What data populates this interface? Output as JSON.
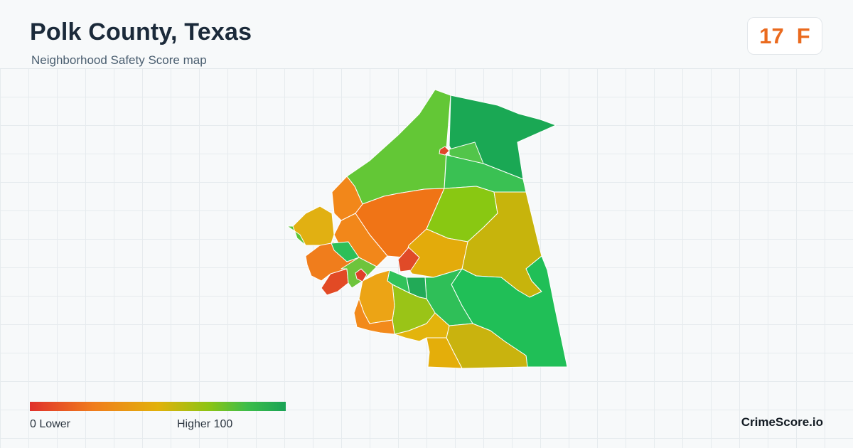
{
  "header": {
    "title": "Polk County, Texas",
    "subtitle": "Neighborhood Safety Score map"
  },
  "grade": {
    "score": "17",
    "letter": "F",
    "color": "#ea6a1e"
  },
  "map": {
    "stroke_color": "#ffffff",
    "regions": [
      {
        "name": "north-west-band",
        "color": "#63c736"
      },
      {
        "name": "north-east-tract",
        "color": "#1aa854"
      },
      {
        "name": "north-east-inner",
        "color": "#52c54a"
      },
      {
        "name": "east-green-strip",
        "color": "#3ac153"
      },
      {
        "name": "north-center",
        "color": "#f07416"
      },
      {
        "name": "center-lime",
        "color": "#89c812"
      },
      {
        "name": "east-olive",
        "color": "#c7b40c"
      },
      {
        "name": "center-amber",
        "color": "#e3ab0b"
      },
      {
        "name": "west-orange",
        "color": "#f2871a"
      },
      {
        "name": "west-orange-north",
        "color": "#f2871a"
      },
      {
        "name": "south-east-green",
        "color": "#20bf57"
      },
      {
        "name": "south-center-green",
        "color": "#2fbf58"
      },
      {
        "name": "south-olive",
        "color": "#c9b30e"
      },
      {
        "name": "south-amber-small",
        "color": "#e4ae0a"
      },
      {
        "name": "south-amber-east",
        "color": "#e3b40c"
      },
      {
        "name": "center-dark-green",
        "color": "#22aa57"
      },
      {
        "name": "center-yellow-green",
        "color": "#9ac417"
      },
      {
        "name": "center-green",
        "color": "#31c25a"
      },
      {
        "name": "southwest-amber",
        "color": "#eca415"
      },
      {
        "name": "southwest-orange",
        "color": "#f28a1b"
      },
      {
        "name": "west-red",
        "color": "#e24a25"
      },
      {
        "name": "west-orange-coast",
        "color": "#f07d1c"
      },
      {
        "name": "west-green",
        "color": "#2dbf58"
      },
      {
        "name": "west-lime",
        "color": "#6ec43c"
      },
      {
        "name": "west-amber",
        "color": "#e1b012"
      },
      {
        "name": "west-lime-tip",
        "color": "#5cc536"
      },
      {
        "name": "red-dot-north",
        "color": "#e0462a"
      },
      {
        "name": "red-dot-center",
        "color": "#e0402a"
      },
      {
        "name": "red-center-east",
        "color": "#e04a28"
      }
    ]
  },
  "legend": {
    "low_label": "0  Lower",
    "high_label": "Higher  100",
    "gradient": [
      "#e0302b",
      "#f07d1c",
      "#e2b10a",
      "#8cc414",
      "#3cbd4a",
      "#19a355"
    ]
  },
  "brand": "CrimeScore.io"
}
